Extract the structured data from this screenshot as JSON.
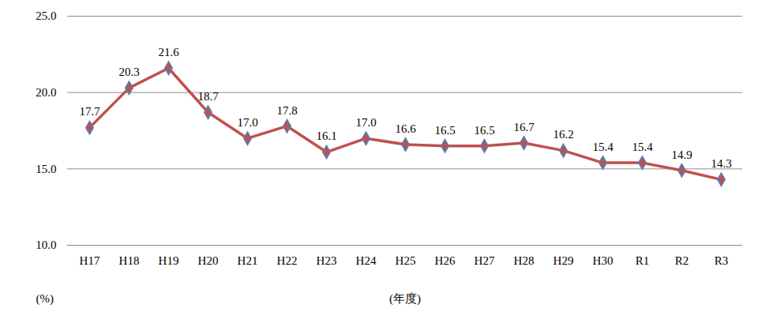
{
  "chart_data": {
    "type": "line",
    "x_label": "(年度)",
    "y_label": "(%)",
    "categories": [
      "H17",
      "H18",
      "H19",
      "H20",
      "H21",
      "H22",
      "H23",
      "H24",
      "H25",
      "H26",
      "H27",
      "H28",
      "H29",
      "H30",
      "R1",
      "R2",
      "R3"
    ],
    "values": [
      17.7,
      20.3,
      21.6,
      18.7,
      17.0,
      17.8,
      16.1,
      17.0,
      16.6,
      16.5,
      16.5,
      16.7,
      16.2,
      15.4,
      15.4,
      14.9,
      14.3
    ],
    "value_labels": [
      "17.7",
      "20.3",
      "21.6",
      "18.7",
      "17.0",
      "17.8",
      "16.1",
      "17.0",
      "16.6",
      "16.5",
      "16.5",
      "16.7",
      "16.2",
      "15.4",
      "15.4",
      "14.9",
      "14.3"
    ],
    "color": "#c0504d",
    "marker": "diamond",
    "ylim": [
      10,
      25
    ],
    "yticks": [
      {
        "value": 10,
        "label": "10.0"
      },
      {
        "value": 15,
        "label": "15.0"
      },
      {
        "value": 20,
        "label": "20.0"
      },
      {
        "value": 25,
        "label": "25.0"
      }
    ],
    "grid": true,
    "data_labels": true
  }
}
